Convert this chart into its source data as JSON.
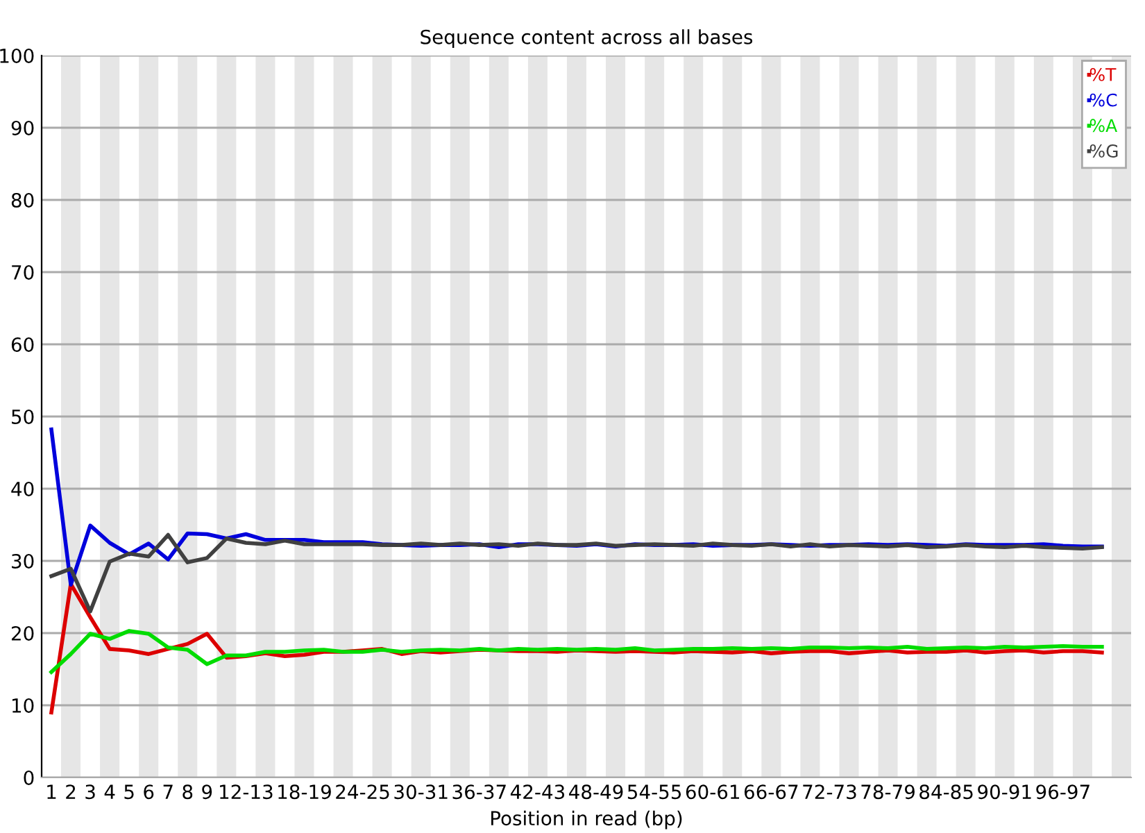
{
  "chart_data": {
    "type": "line",
    "title": "Sequence content across all bases",
    "xlabel": "Position in read (bp)",
    "categories": [
      "1",
      "2",
      "3",
      "4",
      "5",
      "6",
      "7",
      "8",
      "9",
      null,
      "12-13",
      null,
      null,
      "18-19",
      null,
      null,
      "24-25",
      null,
      null,
      "30-31",
      null,
      null,
      "36-37",
      null,
      null,
      "42-43",
      null,
      null,
      "48-49",
      null,
      null,
      "54-55",
      null,
      null,
      "60-61",
      null,
      null,
      "66-67",
      null,
      null,
      "72-73",
      null,
      null,
      "78-79",
      null,
      null,
      "84-85",
      null,
      null,
      "90-91",
      null,
      null,
      "96-97",
      null,
      null
    ],
    "series": [
      {
        "name": "%T",
        "color": "#dc0000",
        "values": [
          9.0,
          26.8,
          22.2,
          17.8,
          17.6,
          17.1,
          17.8,
          18.5,
          19.9,
          16.6,
          16.8,
          17.2,
          16.8,
          17.0,
          17.4,
          17.4,
          17.6,
          17.8,
          17.1,
          17.5,
          17.3,
          17.5,
          17.7,
          17.6,
          17.5,
          17.5,
          17.4,
          17.6,
          17.5,
          17.4,
          17.5,
          17.4,
          17.3,
          17.5,
          17.4,
          17.3,
          17.5,
          17.2,
          17.4,
          17.5,
          17.5,
          17.2,
          17.4,
          17.6,
          17.3,
          17.4,
          17.4,
          17.6,
          17.3,
          17.5,
          17.6,
          17.3,
          17.5,
          17.5,
          17.3
        ]
      },
      {
        "name": "%C",
        "color": "#0000dc",
        "values": [
          48.2,
          26.7,
          34.9,
          32.5,
          30.9,
          32.4,
          30.2,
          33.8,
          33.7,
          33.1,
          33.7,
          32.9,
          32.9,
          32.9,
          32.6,
          32.6,
          32.6,
          32.3,
          32.2,
          32.1,
          32.2,
          32.2,
          32.3,
          31.9,
          32.3,
          32.3,
          32.2,
          32.1,
          32.3,
          32.0,
          32.3,
          32.2,
          32.2,
          32.3,
          32.1,
          32.2,
          32.2,
          32.3,
          32.2,
          32.1,
          32.2,
          32.2,
          32.3,
          32.2,
          32.3,
          32.2,
          32.1,
          32.3,
          32.2,
          32.2,
          32.2,
          32.3,
          32.1,
          32.0,
          32.0
        ]
      },
      {
        "name": "%A",
        "color": "#00dc00",
        "values": [
          14.6,
          17.1,
          19.9,
          19.2,
          20.3,
          19.9,
          18.0,
          17.7,
          15.7,
          16.9,
          16.9,
          17.4,
          17.4,
          17.6,
          17.7,
          17.4,
          17.4,
          17.7,
          17.4,
          17.6,
          17.7,
          17.6,
          17.8,
          17.6,
          17.8,
          17.7,
          17.8,
          17.7,
          17.8,
          17.7,
          17.9,
          17.6,
          17.7,
          17.8,
          17.8,
          17.9,
          17.8,
          17.9,
          17.8,
          18.0,
          18.0,
          17.9,
          18.0,
          17.9,
          18.1,
          17.8,
          17.9,
          18.0,
          17.9,
          18.1,
          18.0,
          18.1,
          18.2,
          18.1,
          18.1
        ]
      },
      {
        "name": "%G",
        "color": "#404040",
        "values": [
          27.9,
          28.9,
          23.0,
          29.9,
          31.0,
          30.6,
          33.6,
          29.8,
          30.4,
          33.1,
          32.5,
          32.3,
          32.8,
          32.3,
          32.3,
          32.3,
          32.3,
          32.2,
          32.2,
          32.4,
          32.2,
          32.4,
          32.2,
          32.3,
          32.1,
          32.4,
          32.2,
          32.2,
          32.4,
          32.1,
          32.2,
          32.3,
          32.2,
          32.1,
          32.4,
          32.2,
          32.1,
          32.3,
          32.0,
          32.3,
          32.0,
          32.2,
          32.1,
          32.0,
          32.2,
          31.9,
          32.0,
          32.2,
          32.0,
          31.9,
          32.1,
          31.9,
          31.8,
          31.7,
          31.9
        ]
      }
    ],
    "ylim": [
      0,
      100
    ],
    "yticks": [
      0,
      10,
      20,
      30,
      40,
      50,
      60,
      70,
      80,
      90,
      100
    ],
    "grid": "y",
    "legend": "top right",
    "marker": "none",
    "line_style": "solid"
  }
}
